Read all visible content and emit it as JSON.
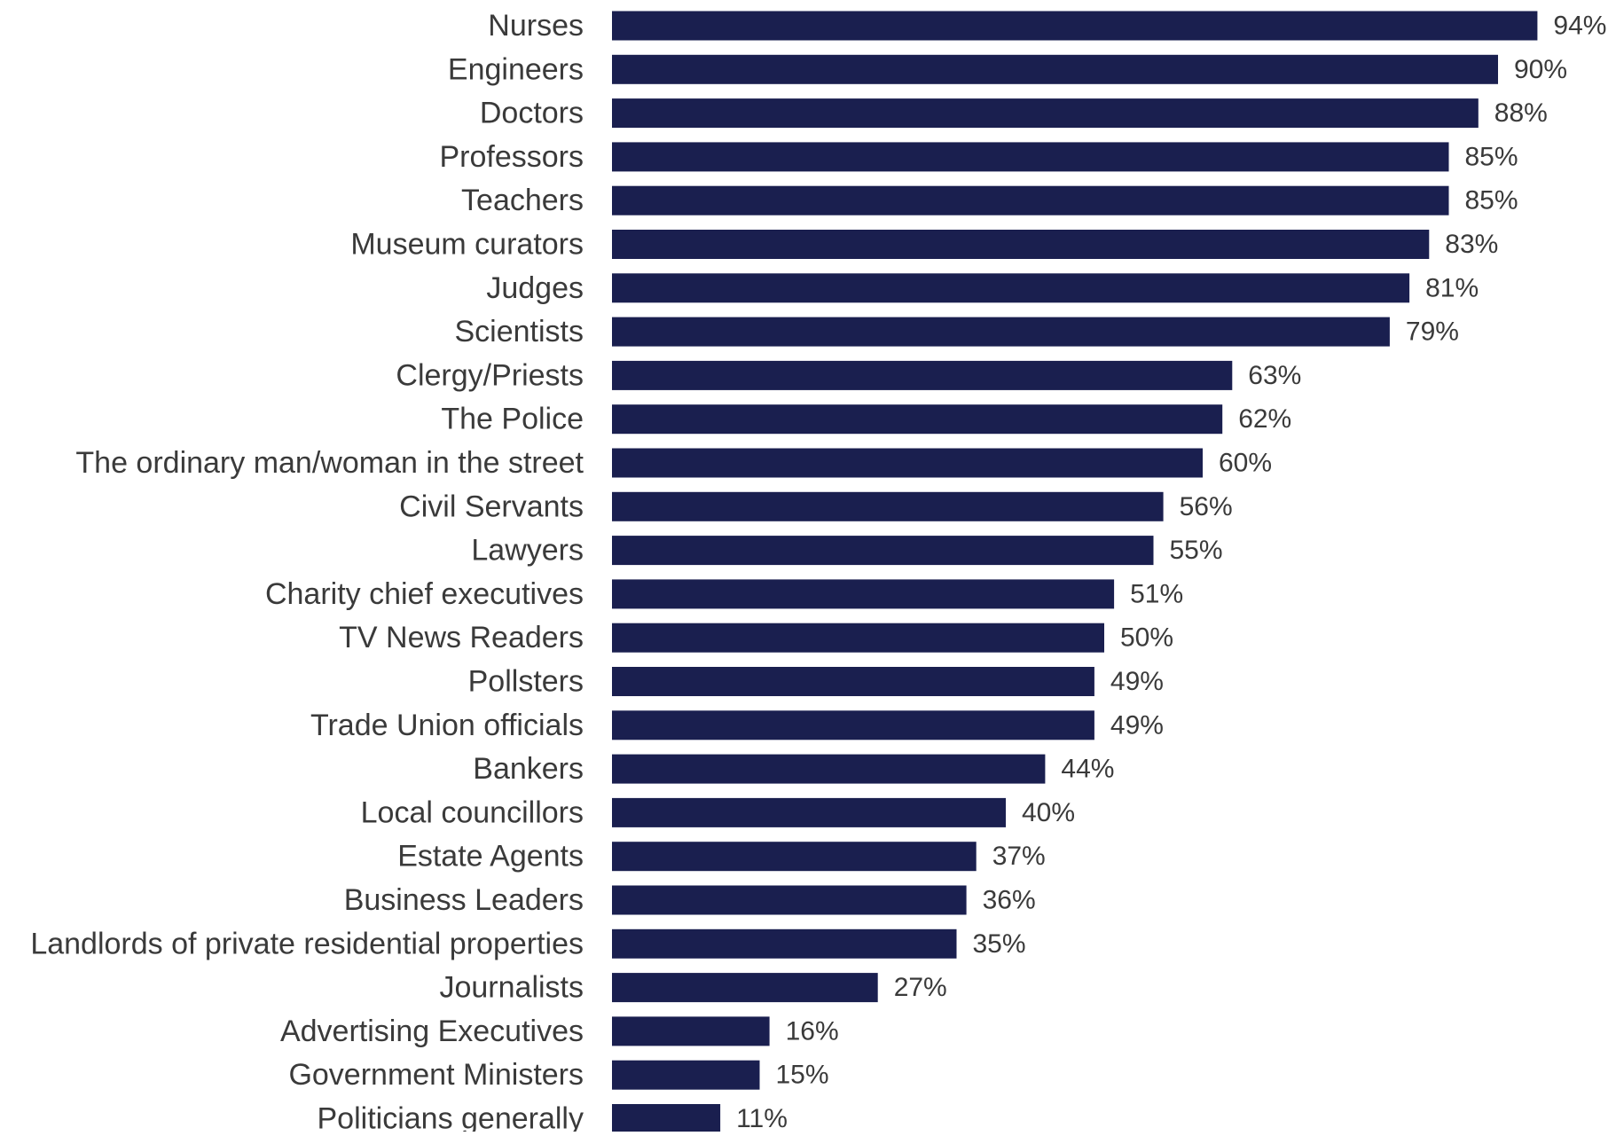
{
  "colors": {
    "bar": "#1a1f4f",
    "text": "#3a3a3a",
    "background": "#ffffff"
  },
  "chart_data": {
    "type": "bar",
    "orientation": "horizontal",
    "title": "",
    "xlabel": "",
    "ylabel": "",
    "xlim": [
      0,
      100
    ],
    "grid": false,
    "legend": "none",
    "categories": [
      "Nurses",
      "Engineers",
      "Doctors",
      "Professors",
      "Teachers",
      "Museum curators",
      "Judges",
      "Scientists",
      "Clergy/Priests",
      "The Police",
      "The ordinary man/woman in the street",
      "Civil Servants",
      "Lawyers",
      "Charity chief executives",
      "TV News Readers",
      "Pollsters",
      "Trade Union officials",
      "Bankers",
      "Local councillors",
      "Estate Agents",
      "Business Leaders",
      "Landlords of private residential properties",
      "Journalists",
      "Advertising Executives",
      "Government Ministers",
      "Politicians generally"
    ],
    "values": [
      94,
      90,
      88,
      85,
      85,
      83,
      81,
      79,
      63,
      62,
      60,
      56,
      55,
      51,
      50,
      49,
      49,
      44,
      40,
      37,
      36,
      35,
      27,
      16,
      15,
      11
    ],
    "value_labels": [
      "94%",
      "90%",
      "88%",
      "85%",
      "85%",
      "83%",
      "81%",
      "79%",
      "63%",
      "62%",
      "60%",
      "56%",
      "55%",
      "51%",
      "50%",
      "49%",
      "49%",
      "44%",
      "40%",
      "37%",
      "36%",
      "35%",
      "27%",
      "16%",
      "15%",
      "11%"
    ]
  }
}
